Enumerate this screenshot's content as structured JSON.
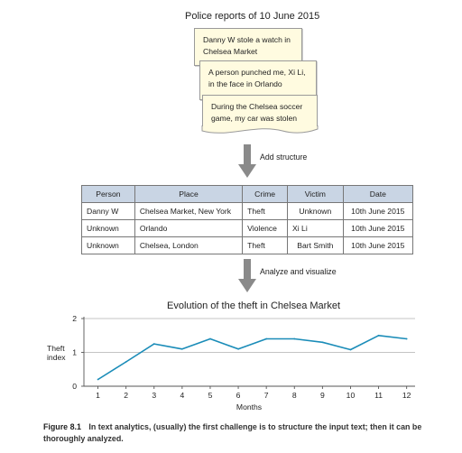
{
  "reports": {
    "title": "Police reports of 10 June 2015",
    "notes": [
      "Danny W stole a watch in Chelsea Market",
      "A person punched me, Xi Li, in the face in Orlando",
      "During the Chelsea soccer game, my car was stolen"
    ]
  },
  "arrows": {
    "add_structure": "Add structure",
    "analyze": "Analyze and visualize"
  },
  "table": {
    "headers": [
      "Person",
      "Place",
      "Crime",
      "Victim",
      "Date"
    ],
    "rows": [
      [
        "Danny W",
        "Chelsea Market, New York",
        "Theft",
        "Unknown",
        "10th June 2015"
      ],
      [
        "Unknown",
        "Orlando",
        "Violence",
        "Xi Li",
        "10th June 2015"
      ],
      [
        "Unknown",
        "Chelsea, London",
        "Theft",
        "Bart Smith",
        "10th June 2015"
      ]
    ]
  },
  "chart_data": {
    "type": "line",
    "title": "Evolution of the theft in Chelsea Market",
    "xlabel": "Months",
    "ylabel": "Theft index",
    "x": [
      1,
      2,
      3,
      4,
      5,
      6,
      7,
      8,
      9,
      10,
      11,
      12
    ],
    "y": [
      0.2,
      0.72,
      1.25,
      1.1,
      1.4,
      1.1,
      1.4,
      1.4,
      1.3,
      1.08,
      1.5,
      1.4
    ],
    "xlim": [
      0.5,
      12.3
    ],
    "ylim": [
      0,
      2
    ],
    "yticks": [
      0,
      1,
      2
    ],
    "grid": true,
    "line_color": "#1a8cb8"
  },
  "caption": {
    "label": "Figure 8.1",
    "text": "In text analytics, (usually) the first challenge is to structure the input text; then it can be thoroughly analyzed."
  }
}
